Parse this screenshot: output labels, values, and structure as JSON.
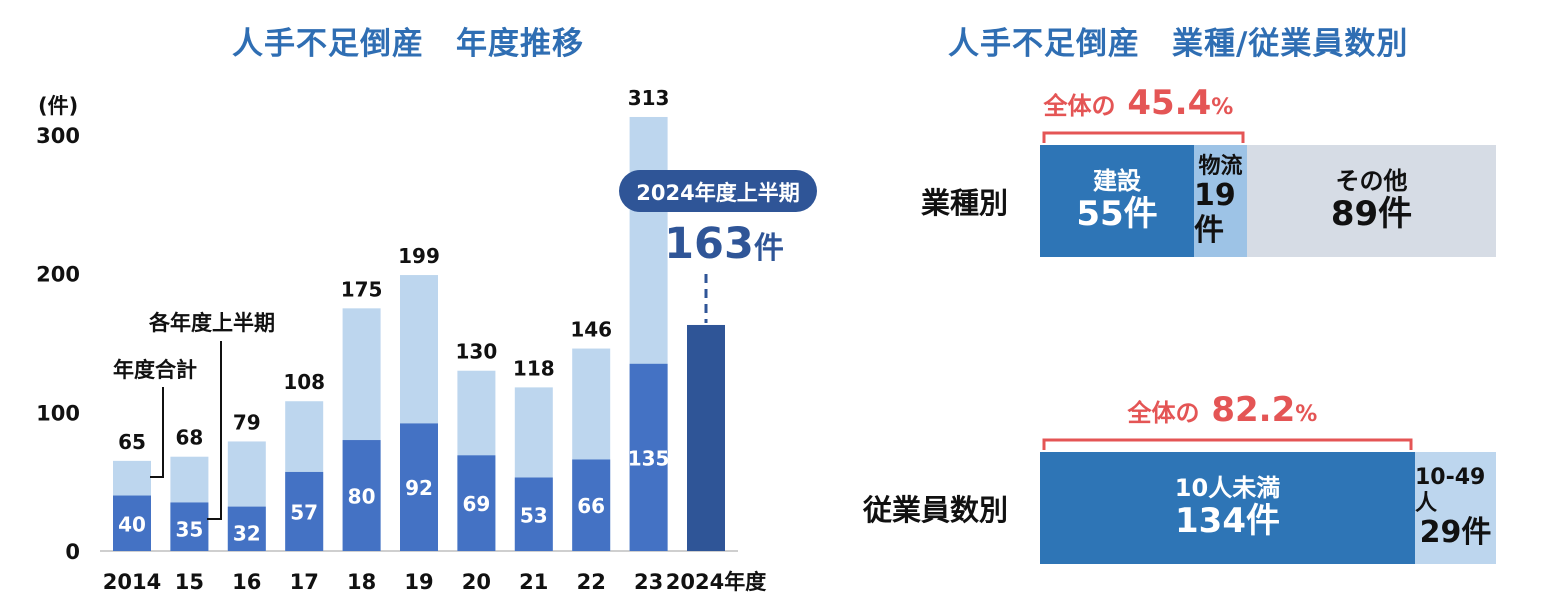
{
  "left_title": "人手不足倒産　年度推移",
  "right_title": "人手不足倒産　業種/従業員数別",
  "chart_data": [
    {
      "type": "bar",
      "title": "人手不足倒産　年度推移",
      "ylabel": "(件)",
      "ylim": [
        0,
        300
      ],
      "yticks": [
        "0",
        "100",
        "200",
        "300"
      ],
      "categories": [
        "2014",
        "15",
        "16",
        "17",
        "18",
        "19",
        "20",
        "21",
        "22",
        "23",
        "2024年度"
      ],
      "series": [
        {
          "name": "年度合計",
          "values": [
            65,
            68,
            79,
            108,
            175,
            199,
            130,
            118,
            146,
            313,
            null
          ],
          "color": "#bdd6ee"
        },
        {
          "name": "各年度上半期",
          "values": [
            40,
            35,
            32,
            57,
            80,
            92,
            69,
            53,
            66,
            135,
            163
          ],
          "color": "#4472c4"
        }
      ],
      "highlight_color": "#2f5597",
      "annotation": {
        "label": "2024年度上半期",
        "value": "163",
        "unit": "件"
      }
    },
    {
      "type": "bar",
      "subtype": "stacked-horizontal",
      "rows": [
        {
          "label": "業種別",
          "segments": [
            {
              "name": "建設",
              "value": 55,
              "text": "55件",
              "color": "#2e75b6",
              "text_color": "#ffffff"
            },
            {
              "name": "物流",
              "value": 19,
              "text": "19件",
              "color": "#9dc3e6",
              "text_color": "#111111"
            },
            {
              "name": "その他",
              "value": 89,
              "text": "89件",
              "color": "#d6dce5",
              "text_color": "#111111"
            }
          ],
          "callout": {
            "prefix": "全体の",
            "value": "45.4",
            "suffix": "%"
          }
        },
        {
          "label": "従業員数別",
          "segments": [
            {
              "name": "10人未満",
              "value": 134,
              "text": "134件",
              "color": "#2e75b6",
              "text_color": "#ffffff"
            },
            {
              "name": "10-49人",
              "value": 29,
              "text": "29件",
              "color": "#bdd6ee",
              "text_color": "#111111"
            }
          ],
          "callout": {
            "prefix": "全体の",
            "value": "82.2",
            "suffix": "%"
          }
        }
      ],
      "callout_color": "#e45555"
    }
  ]
}
